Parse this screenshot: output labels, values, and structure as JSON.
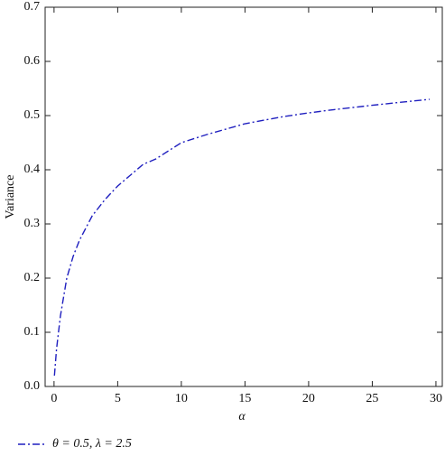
{
  "chart_data": {
    "type": "line",
    "xlabel": "α",
    "ylabel": "Variance",
    "x": [
      0.03,
      0.2,
      0.5,
      1,
      1.5,
      2,
      3,
      4,
      5,
      6,
      7,
      8,
      10,
      12,
      15,
      18,
      20,
      22,
      25,
      27,
      29.5
    ],
    "series": [
      {
        "name": "θ = 0.5, λ = 2.5",
        "color": "#1f1fbf",
        "values": [
          0.02,
          0.07,
          0.13,
          0.2,
          0.24,
          0.27,
          0.315,
          0.345,
          0.37,
          0.39,
          0.41,
          0.42,
          0.45,
          0.465,
          0.485,
          0.498,
          0.505,
          0.511,
          0.519,
          0.524,
          0.53
        ]
      }
    ],
    "xlim": [
      -0.7,
      30.5
    ],
    "ylim": [
      0,
      0.7
    ],
    "xticks": [
      0,
      5,
      10,
      15,
      20,
      25,
      30
    ],
    "yticks": [
      {
        "value": 0,
        "label": "0.0"
      },
      0.1,
      0.2,
      0.3,
      0.4,
      0.5,
      0.6,
      0.7
    ],
    "legend": "bottom-left"
  }
}
